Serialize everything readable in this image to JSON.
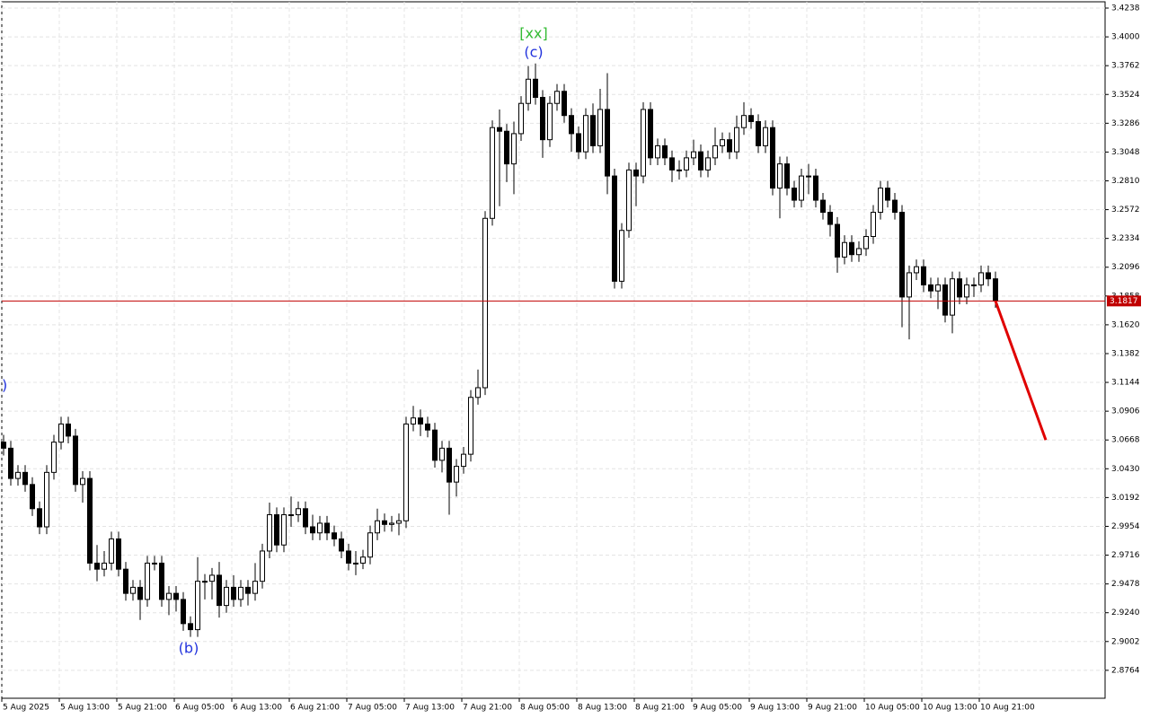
{
  "chart_data": {
    "type": "candlestick",
    "categories": [
      "5 Aug 2025",
      null,
      null,
      null,
      null,
      null,
      null,
      null,
      "5 Aug 13:00",
      null,
      null,
      null,
      null,
      null,
      null,
      null,
      "5 Aug 21:00",
      null,
      null,
      null,
      null,
      null,
      null,
      null,
      "6 Aug 05:00",
      null,
      null,
      null,
      null,
      null,
      null,
      null,
      "6 Aug 13:00",
      null,
      null,
      null,
      null,
      null,
      null,
      null,
      "6 Aug 21:00",
      null,
      null,
      null,
      null,
      null,
      null,
      null,
      "7 Aug 05:00",
      null,
      null,
      null,
      null,
      null,
      null,
      null,
      "7 Aug 13:00",
      null,
      null,
      null,
      null,
      null,
      null,
      null,
      "7 Aug 21:00",
      null,
      null,
      null,
      null,
      null,
      null,
      null,
      "8 Aug 05:00",
      null,
      null,
      null,
      null,
      null,
      null,
      null,
      "8 Aug 13:00",
      null,
      null,
      null,
      null,
      null,
      null,
      null,
      "8 Aug 21:00",
      null,
      null,
      null,
      null,
      null,
      null,
      null,
      "9 Aug 05:00",
      null,
      null,
      null,
      null,
      null,
      null,
      null,
      "9 Aug 13:00",
      null,
      null,
      null,
      null,
      null,
      null,
      null,
      "9 Aug 21:00",
      null,
      null,
      null,
      null,
      null,
      null,
      null,
      "10 Aug 05:00",
      null,
      null,
      null,
      null,
      null,
      null,
      null,
      "10 Aug 13:00",
      null,
      null,
      null,
      null,
      null,
      null,
      null,
      "10 Aug 21:00",
      null,
      null
    ],
    "open": [
      3.065,
      3.06,
      3.035,
      3.04,
      3.03,
      3.01,
      2.995,
      3.04,
      3.065,
      3.08,
      3.07,
      3.03,
      3.035,
      2.965,
      2.96,
      2.965,
      2.985,
      2.96,
      2.94,
      2.945,
      2.935,
      2.965,
      2.965,
      2.935,
      2.94,
      2.935,
      2.915,
      2.91,
      2.95,
      2.95,
      2.955,
      2.93,
      2.945,
      2.935,
      2.945,
      2.94,
      2.95,
      2.975,
      3.005,
      2.98,
      3.005,
      3.005,
      3.01,
      2.995,
      2.99,
      2.998,
      2.99,
      2.985,
      2.975,
      2.965,
      2.965,
      2.97,
      2.99,
      3.0,
      2.997,
      2.998,
      3.0,
      3.08,
      3.085,
      3.08,
      3.075,
      3.05,
      3.06,
      3.032,
      3.045,
      3.055,
      3.102,
      3.11,
      3.25,
      3.325,
      3.322,
      3.295,
      3.32,
      3.345,
      3.365,
      3.35,
      3.315,
      3.345,
      3.355,
      3.335,
      3.32,
      3.305,
      3.335,
      3.31,
      3.34,
      3.285,
      3.198,
      3.24,
      3.29,
      3.285,
      3.34,
      3.3,
      3.31,
      3.3,
      3.29,
      3.29,
      3.3,
      3.305,
      3.29,
      3.3,
      3.31,
      3.315,
      3.305,
      3.325,
      3.335,
      3.33,
      3.31,
      3.325,
      3.275,
      3.295,
      3.275,
      3.265,
      3.285,
      3.285,
      3.265,
      3.255,
      3.245,
      3.218,
      3.23,
      3.22,
      3.225,
      3.235,
      3.255,
      3.275,
      3.265,
      3.255,
      3.185,
      3.205,
      3.21,
      3.195,
      3.19,
      3.195,
      3.17,
      3.2,
      3.185,
      3.195,
      3.195,
      3.205,
      3.2
    ],
    "high": [
      3.071,
      3.066,
      3.046,
      3.046,
      3.036,
      3.016,
      3.046,
      3.071,
      3.086,
      3.086,
      3.076,
      3.041,
      3.041,
      2.98,
      2.975,
      2.991,
      2.991,
      2.966,
      2.951,
      2.951,
      2.971,
      2.971,
      2.971,
      2.946,
      2.946,
      2.941,
      2.921,
      2.97,
      2.956,
      2.961,
      2.966,
      2.951,
      2.955,
      2.951,
      2.951,
      2.965,
      2.981,
      3.015,
      3.011,
      3.011,
      3.02,
      3.016,
      3.016,
      3.005,
      3.004,
      3.004,
      2.996,
      2.991,
      2.981,
      2.975,
      2.976,
      2.996,
      3.01,
      3.006,
      3.004,
      3.006,
      3.086,
      3.095,
      3.092,
      3.086,
      3.081,
      3.066,
      3.066,
      3.051,
      3.061,
      3.108,
      3.125,
      3.256,
      3.331,
      3.34,
      3.328,
      3.33,
      3.351,
      3.376,
      3.378,
      3.356,
      3.351,
      3.361,
      3.361,
      3.341,
      3.326,
      3.341,
      3.345,
      3.357,
      3.37,
      3.291,
      3.246,
      3.296,
      3.296,
      3.346,
      3.346,
      3.316,
      3.316,
      3.306,
      3.298,
      3.306,
      3.315,
      3.311,
      3.306,
      3.325,
      3.321,
      3.321,
      3.335,
      3.346,
      3.341,
      3.336,
      3.331,
      3.331,
      3.301,
      3.301,
      3.281,
      3.291,
      3.295,
      3.291,
      3.271,
      3.261,
      3.251,
      3.236,
      3.236,
      3.231,
      3.241,
      3.261,
      3.281,
      3.281,
      3.271,
      3.261,
      3.211,
      3.216,
      3.216,
      3.201,
      3.201,
      3.201,
      3.206,
      3.206,
      3.201,
      3.201,
      3.211,
      3.211,
      3.206
    ],
    "low": [
      3.054,
      3.029,
      3.029,
      3.024,
      3.004,
      2.989,
      2.989,
      3.034,
      3.059,
      3.064,
      3.024,
      3.015,
      2.959,
      2.95,
      2.954,
      2.959,
      2.954,
      2.934,
      2.934,
      2.918,
      2.929,
      2.959,
      2.929,
      2.922,
      2.925,
      2.909,
      2.904,
      2.904,
      2.935,
      2.935,
      2.92,
      2.924,
      2.929,
      2.929,
      2.93,
      2.934,
      2.944,
      2.969,
      2.974,
      2.974,
      2.995,
      2.999,
      2.989,
      2.984,
      2.984,
      2.984,
      2.979,
      2.969,
      2.959,
      2.955,
      2.96,
      2.964,
      2.984,
      2.991,
      2.991,
      2.988,
      2.994,
      3.074,
      3.07,
      3.069,
      3.044,
      3.04,
      3.005,
      3.02,
      3.039,
      3.049,
      3.096,
      3.104,
      3.244,
      3.26,
      3.28,
      3.27,
      3.314,
      3.339,
      3.344,
      3.3,
      3.309,
      3.339,
      3.329,
      3.305,
      3.299,
      3.299,
      3.304,
      3.304,
      3.27,
      3.192,
      3.192,
      3.234,
      3.26,
      3.279,
      3.294,
      3.294,
      3.294,
      3.28,
      3.282,
      3.284,
      3.294,
      3.284,
      3.284,
      3.294,
      3.304,
      3.299,
      3.299,
      3.319,
      3.324,
      3.304,
      3.304,
      3.269,
      3.25,
      3.269,
      3.259,
      3.259,
      3.27,
      3.259,
      3.249,
      3.235,
      3.205,
      3.212,
      3.214,
      3.214,
      3.219,
      3.229,
      3.249,
      3.259,
      3.249,
      3.16,
      3.15,
      3.199,
      3.189,
      3.184,
      3.175,
      3.164,
      3.155,
      3.179,
      3.179,
      3.185,
      3.189,
      3.194,
      3.176
    ],
    "close": [
      3.06,
      3.035,
      3.04,
      3.03,
      3.01,
      2.995,
      3.04,
      3.065,
      3.08,
      3.07,
      3.03,
      3.035,
      2.965,
      2.96,
      2.965,
      2.985,
      2.96,
      2.94,
      2.945,
      2.935,
      2.965,
      2.965,
      2.935,
      2.94,
      2.935,
      2.915,
      2.91,
      2.95,
      2.95,
      2.955,
      2.93,
      2.945,
      2.935,
      2.945,
      2.94,
      2.95,
      2.975,
      3.005,
      2.98,
      3.005,
      3.005,
      3.01,
      2.995,
      2.99,
      2.998,
      2.99,
      2.985,
      2.975,
      2.965,
      2.965,
      2.97,
      2.99,
      3.0,
      2.997,
      2.998,
      3.0,
      3.08,
      3.085,
      3.08,
      3.075,
      3.05,
      3.06,
      3.032,
      3.045,
      3.055,
      3.102,
      3.11,
      3.25,
      3.325,
      3.322,
      3.295,
      3.32,
      3.345,
      3.365,
      3.35,
      3.315,
      3.345,
      3.355,
      3.335,
      3.32,
      3.305,
      3.335,
      3.31,
      3.34,
      3.285,
      3.198,
      3.24,
      3.29,
      3.285,
      3.34,
      3.3,
      3.31,
      3.3,
      3.29,
      3.29,
      3.3,
      3.305,
      3.29,
      3.3,
      3.31,
      3.315,
      3.305,
      3.325,
      3.335,
      3.33,
      3.31,
      3.325,
      3.275,
      3.295,
      3.275,
      3.265,
      3.285,
      3.285,
      3.265,
      3.255,
      3.245,
      3.218,
      3.23,
      3.22,
      3.225,
      3.235,
      3.255,
      3.275,
      3.265,
      3.255,
      3.185,
      3.205,
      3.21,
      3.195,
      3.19,
      3.195,
      3.17,
      3.2,
      3.185,
      3.195,
      3.195,
      3.205,
      3.2,
      3.1817
    ],
    "ylim": [
      2.8533,
      3.429
    ],
    "yticks": [
      {
        "value": 3.4238,
        "label": "3.4238"
      },
      {
        "value": 3.4,
        "label": "3.4000"
      },
      {
        "value": 3.3762,
        "label": "3.3762"
      },
      {
        "value": 3.3524,
        "label": "3.3524"
      },
      {
        "value": 3.3286,
        "label": "3.3286"
      },
      {
        "value": 3.3048,
        "label": "3.3048"
      },
      {
        "value": 3.281,
        "label": "3.2810"
      },
      {
        "value": 3.2572,
        "label": "3.2572"
      },
      {
        "value": 3.2334,
        "label": "3.2334"
      },
      {
        "value": 3.2096,
        "label": "3.2096"
      },
      {
        "value": 3.1858,
        "label": "3.1858"
      },
      {
        "value": 3.162,
        "label": "3.1620"
      },
      {
        "value": 3.1382,
        "label": "3.1382"
      },
      {
        "value": 3.1144,
        "label": "3.1144"
      },
      {
        "value": 3.0906,
        "label": "3.0906"
      },
      {
        "value": 3.0668,
        "label": "3.0668"
      },
      {
        "value": 3.043,
        "label": "3.0430"
      },
      {
        "value": 3.0192,
        "label": "3.0192"
      },
      {
        "value": 2.9954,
        "label": "2.9954"
      },
      {
        "value": 2.9716,
        "label": "2.9716"
      },
      {
        "value": 2.9478,
        "label": "2.9478"
      },
      {
        "value": 2.924,
        "label": "2.9240"
      },
      {
        "value": 2.9002,
        "label": "2.9002"
      },
      {
        "value": 2.8764,
        "label": "2.8764"
      }
    ],
    "grid": true,
    "price_line": {
      "value": 3.1817,
      "color": "#c00000"
    },
    "forecast": {
      "color": "#e00000",
      "x": [
        138,
        145
      ],
      "values": [
        3.1817,
        3.0668
      ]
    },
    "annotations": [
      {
        "text": "[xx]",
        "color": "#33bb33"
      },
      {
        "text": "(c)",
        "color": "#2233dd"
      },
      {
        "text": "(b)",
        "color": "#2233dd"
      },
      {
        "text": ")",
        "color": "#2233dd"
      }
    ]
  }
}
